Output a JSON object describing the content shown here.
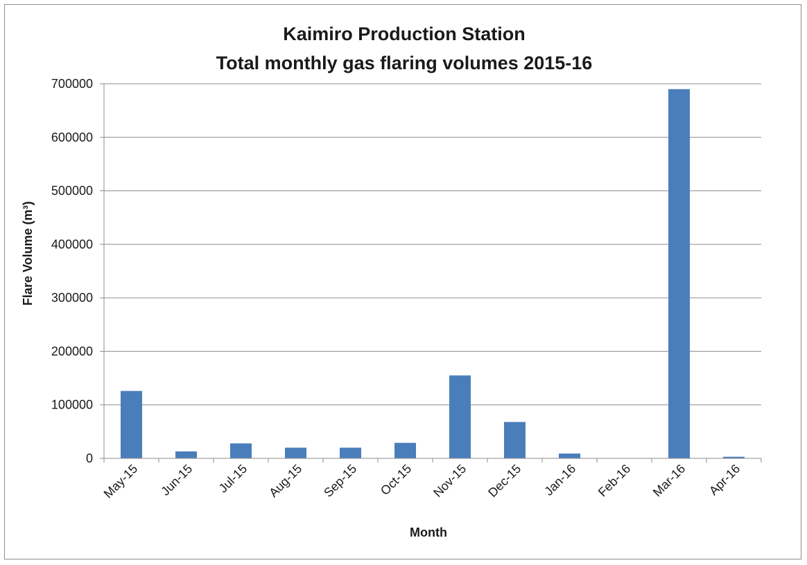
{
  "chart_data": {
    "type": "bar",
    "title_lines": [
      "Kaimiro Production Station",
      "Total monthly gas flaring volumes 2015-16"
    ],
    "xlabel": "Month",
    "ylabel": "Flare Volume (m³)",
    "categories": [
      "May-15",
      "Jun-15",
      "Jul-15",
      "Aug-15",
      "Sep-15",
      "Oct-15",
      "Nov-15",
      "Dec-15",
      "Jan-16",
      "Feb-16",
      "Mar-16",
      "Apr-16"
    ],
    "values": [
      126000,
      13000,
      28000,
      20000,
      20000,
      29000,
      155000,
      68000,
      9000,
      0,
      690000,
      3000
    ],
    "ylim": [
      0,
      700000
    ],
    "yticks": [
      0,
      100000,
      200000,
      300000,
      400000,
      500000,
      600000,
      700000
    ],
    "ytick_labels": [
      "0",
      "100000",
      "200000",
      "300000",
      "400000",
      "500000",
      "600000",
      "700000"
    ],
    "grid": true,
    "legend": "none",
    "bar_color": "#4a7ebb"
  }
}
